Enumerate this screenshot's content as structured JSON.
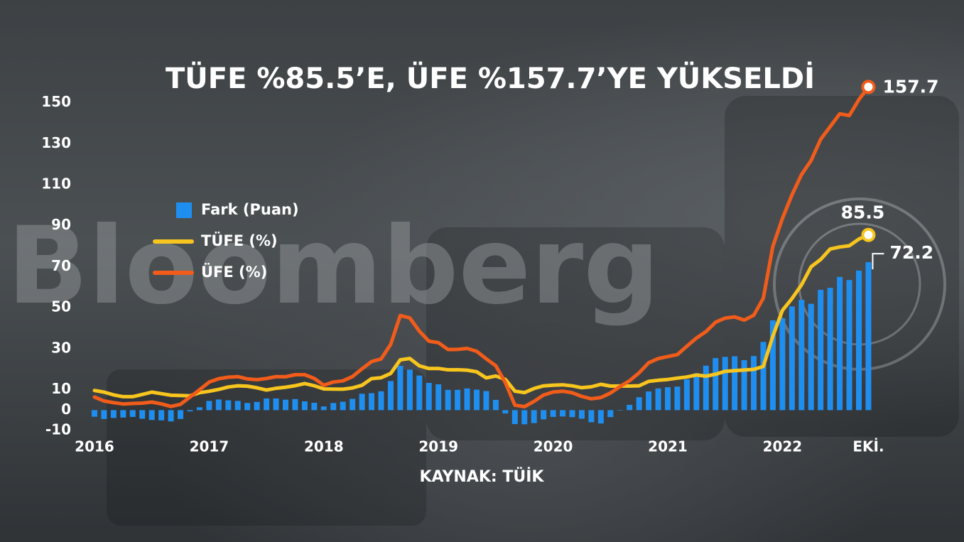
{
  "chart_data": {
    "type": "combo",
    "title": "TÜFE %85.5’E, ÜFE %157.7’YE YÜKSELDİ",
    "source": "KAYNAK: TÜİK",
    "watermark": "Bloomberg",
    "categories": [
      "2016",
      null,
      null,
      null,
      null,
      null,
      null,
      null,
      null,
      null,
      null,
      null,
      "2017",
      null,
      null,
      null,
      null,
      null,
      null,
      null,
      null,
      null,
      null,
      null,
      "2018",
      null,
      null,
      null,
      null,
      null,
      null,
      null,
      null,
      null,
      null,
      null,
      "2019",
      null,
      null,
      null,
      null,
      null,
      null,
      null,
      null,
      null,
      null,
      null,
      "2020",
      null,
      null,
      null,
      null,
      null,
      null,
      null,
      null,
      null,
      null,
      null,
      "2021",
      null,
      null,
      null,
      null,
      null,
      null,
      null,
      null,
      null,
      null,
      null,
      "2022",
      null,
      null,
      null,
      null,
      null,
      null,
      null,
      null,
      "EKİ."
    ],
    "series": [
      {
        "name": "Fark (Puan)",
        "type": "bar",
        "color": "#1e8ff0",
        "values": [
          -3.2,
          -4.3,
          -3.8,
          -3.6,
          -3.3,
          -4.2,
          -4.8,
          -5.0,
          -5.5,
          -4.3,
          -0.6,
          1.4,
          4.5,
          5.2,
          4.8,
          4.5,
          3.5,
          4.0,
          5.7,
          5.7,
          5.1,
          5.4,
          4.3,
          3.6,
          1.8,
          3.5,
          4.1,
          5.5,
          8.0,
          8.3,
          9.2,
          14.2,
          21.6,
          19.8,
          16.9,
          13.3,
          12.6,
          9.9,
          9.9,
          10.6,
          10.0,
          9.3,
          5.0,
          -1.6,
          -6.8,
          -6.9,
          -6.3,
          -4.5,
          -3.3,
          -3.1,
          -3.4,
          -4.2,
          -5.9,
          -6.5,
          -3.4,
          -0.2,
          2.6,
          6.3,
          9.1,
          10.6,
          11.2,
          11.5,
          15.0,
          18.0,
          21.7,
          25.4,
          26.0,
          26.3,
          24.4,
          26.4,
          33.3,
          43.8,
          44.8,
          50.6,
          53.8,
          51.9,
          58.7,
          59.7,
          65.0,
          63.5,
          68.1,
          72.2
        ]
      },
      {
        "name": "TÜFE (%)",
        "type": "line",
        "color": "#f7c51e",
        "values": [
          9.58,
          8.78,
          7.46,
          6.57,
          6.58,
          7.64,
          8.79,
          8.05,
          7.28,
          7.16,
          7.0,
          8.53,
          9.22,
          10.13,
          11.29,
          11.87,
          11.72,
          10.9,
          9.79,
          10.68,
          11.2,
          11.9,
          12.98,
          11.92,
          10.35,
          10.26,
          10.23,
          10.85,
          12.15,
          15.39,
          15.85,
          17.9,
          24.52,
          25.24,
          21.62,
          20.3,
          20.35,
          19.67,
          19.71,
          19.5,
          18.71,
          15.72,
          16.65,
          15.01,
          9.26,
          8.55,
          10.56,
          11.84,
          12.15,
          12.37,
          11.86,
          10.94,
          11.39,
          12.62,
          11.76,
          11.77,
          11.75,
          11.89,
          14.03,
          14.6,
          14.97,
          15.61,
          16.19,
          17.14,
          16.59,
          17.53,
          18.95,
          19.25,
          19.58,
          19.89,
          21.31,
          36.08,
          48.69,
          54.44,
          61.14,
          69.97,
          73.5,
          78.62,
          79.6,
          80.21,
          83.45,
          85.5
        ]
      },
      {
        "name": "ÜFE (%)",
        "type": "line",
        "color": "#f25c1a",
        "values": [
          6.41,
          4.47,
          3.67,
          3.0,
          3.25,
          3.41,
          3.96,
          3.03,
          1.78,
          2.84,
          6.41,
          9.94,
          13.69,
          15.36,
          16.09,
          16.37,
          15.26,
          14.87,
          15.45,
          16.34,
          16.28,
          17.28,
          17.3,
          15.47,
          12.14,
          13.71,
          14.28,
          16.37,
          20.16,
          23.71,
          25.0,
          32.13,
          46.15,
          45.01,
          38.54,
          33.64,
          32.93,
          29.58,
          29.64,
          30.12,
          28.71,
          25.04,
          21.66,
          13.45,
          2.45,
          1.7,
          4.26,
          7.36,
          8.84,
          9.26,
          8.5,
          6.71,
          5.53,
          6.17,
          8.33,
          11.53,
          14.33,
          18.2,
          23.11,
          25.15,
          26.16,
          27.09,
          31.2,
          35.17,
          38.33,
          42.89,
          44.92,
          45.52,
          43.96,
          46.31,
          54.62,
          79.89,
          93.53,
          105.01,
          114.97,
          121.82,
          132.16,
          138.31,
          144.61,
          143.75,
          151.5,
          157.7
        ]
      }
    ],
    "ylim": [
      -12,
      162
    ],
    "yticks": [
      -10,
      0,
      10,
      30,
      50,
      70,
      90,
      110,
      130,
      150
    ],
    "grid": false,
    "legend": "left"
  }
}
